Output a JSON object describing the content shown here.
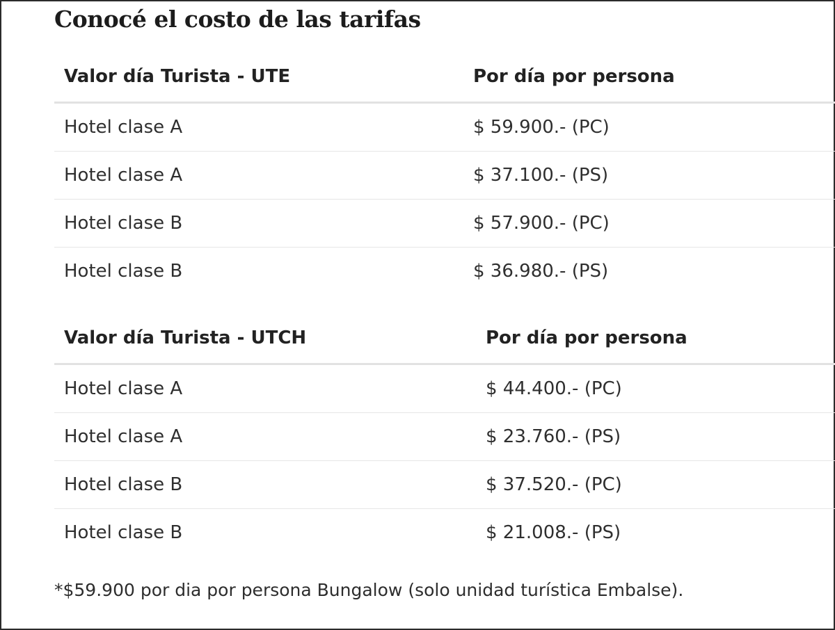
{
  "title": "Conocé el costo de las tarifas",
  "tables": [
    {
      "header": [
        "Valor día Turista - UTE",
        "Por día por persona"
      ],
      "rows": [
        [
          "Hotel clase A",
          "$ 59.900.- (PC)"
        ],
        [
          "Hotel clase A",
          "$ 37.100.- (PS)"
        ],
        [
          "Hotel clase B",
          "$ 57.900.- (PC)"
        ],
        [
          "Hotel clase B",
          "$ 36.980.- (PS)"
        ]
      ]
    },
    {
      "header": [
        "Valor día Turista - UTCH",
        "Por día por persona"
      ],
      "rows": [
        [
          "Hotel clase A",
          "$ 44.400.- (PC)"
        ],
        [
          "Hotel clase A",
          "$ 23.760.- (PS)"
        ],
        [
          "Hotel clase B",
          "$ 37.520.- (PC)"
        ],
        [
          "Hotel clase B",
          "$ 21.008.- (PS)"
        ]
      ]
    }
  ],
  "footnote": "*$59.900 por dia por persona Bungalow (solo unidad turística Embalse)."
}
